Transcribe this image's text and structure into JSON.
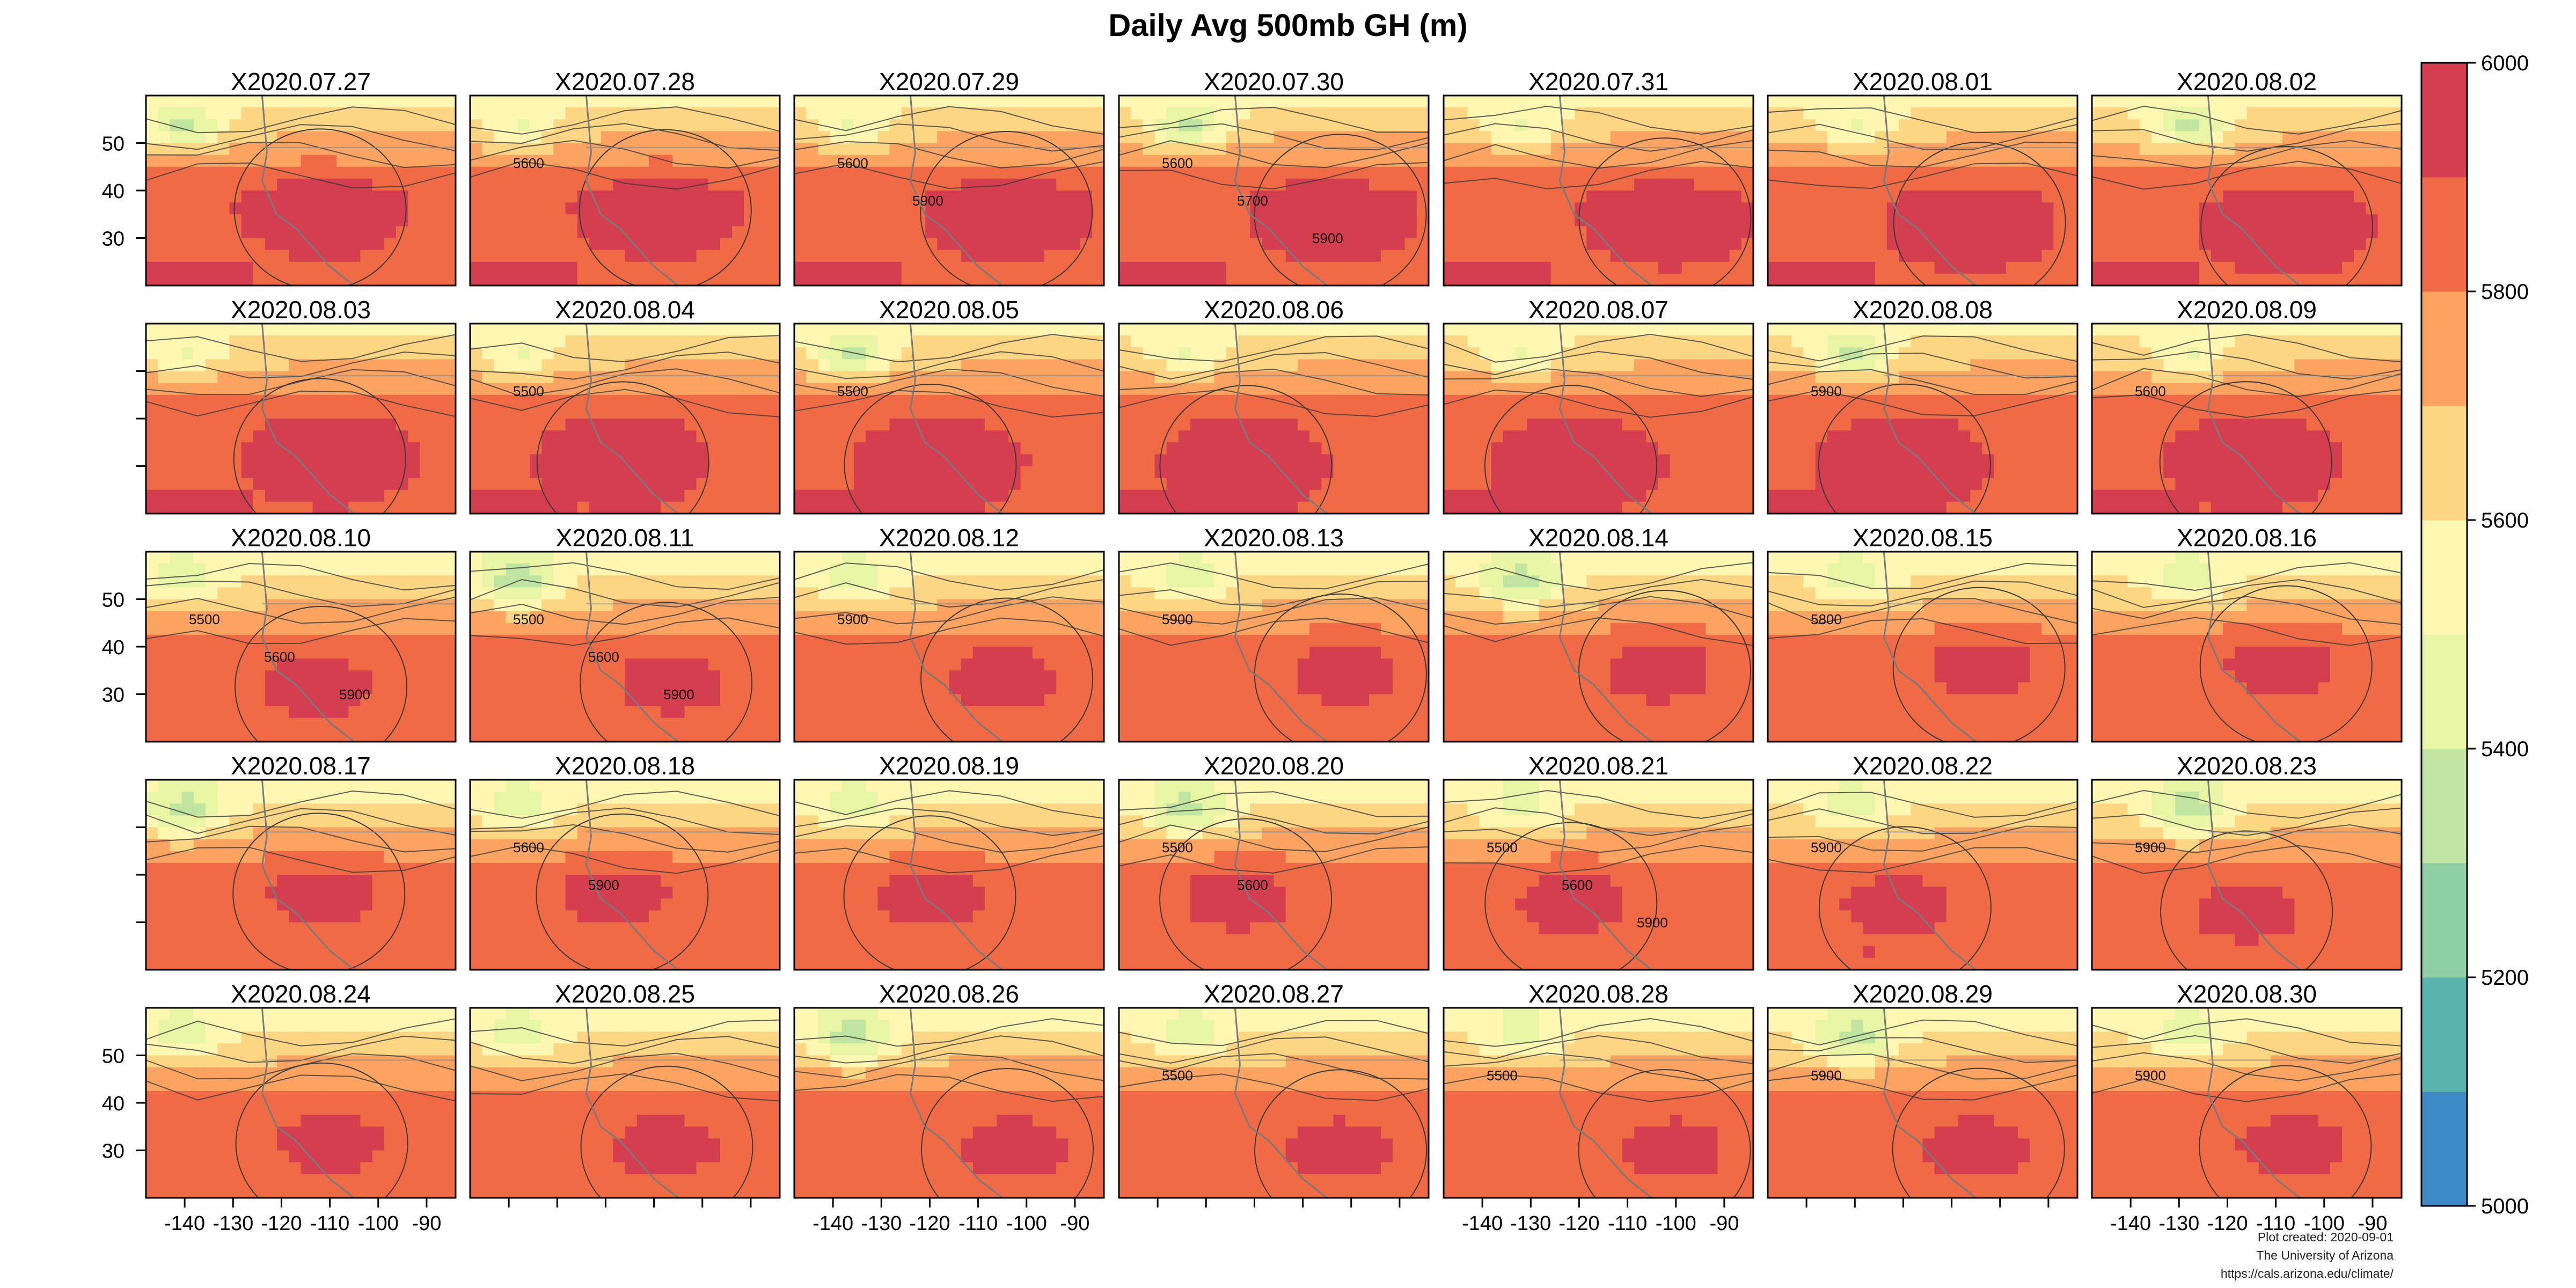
{
  "chart_data": {
    "type": "heatmap",
    "title": "Daily Avg 500mb GH (m)",
    "xlabel": "",
    "ylabel": "",
    "layout": {
      "rows": 5,
      "cols": 7
    },
    "panels": [
      "X2020.07.27",
      "X2020.07.28",
      "X2020.07.29",
      "X2020.07.30",
      "X2020.07.31",
      "X2020.08.01",
      "X2020.08.02",
      "X2020.08.03",
      "X2020.08.04",
      "X2020.08.05",
      "X2020.08.06",
      "X2020.08.07",
      "X2020.08.08",
      "X2020.08.09",
      "X2020.08.10",
      "X2020.08.11",
      "X2020.08.12",
      "X2020.08.13",
      "X2020.08.14",
      "X2020.08.15",
      "X2020.08.16",
      "X2020.08.17",
      "X2020.08.18",
      "X2020.08.19",
      "X2020.08.20",
      "X2020.08.21",
      "X2020.08.22",
      "X2020.08.23",
      "X2020.08.24",
      "X2020.08.25",
      "X2020.08.26",
      "X2020.08.27",
      "X2020.08.28",
      "X2020.08.29",
      "X2020.08.30"
    ],
    "xlim": [
      -148,
      -84
    ],
    "ylim": [
      20,
      60
    ],
    "x_ticks": [
      -140,
      -130,
      -120,
      -110,
      -100,
      -90
    ],
    "y_ticks": [
      30,
      40,
      50
    ],
    "x_tick_panels_cols": [
      0,
      2,
      4,
      6
    ],
    "y_tick_panels_rows": [
      0,
      2,
      4
    ],
    "colorbar": {
      "min": 5000,
      "max": 6000,
      "ticks": [
        5000,
        5200,
        5400,
        5600,
        5800,
        6000
      ],
      "colors": [
        "#3E89C6",
        "#5BB5AE",
        "#8ECFA4",
        "#BFE5A0",
        "#E8F5A4",
        "#FDF7B2",
        "#FDD684",
        "#FBA360",
        "#F06B45",
        "#D53E4F"
      ]
    },
    "contour_labels": [
      {
        "panel": "X2020.07.28",
        "text": "5600"
      },
      {
        "panel": "X2020.07.29",
        "text": "5600"
      },
      {
        "panel": "X2020.07.29",
        "text": "5900"
      },
      {
        "panel": "X2020.07.30",
        "text": "5600"
      },
      {
        "panel": "X2020.07.30",
        "text": "5700"
      },
      {
        "panel": "X2020.07.30",
        "text": "5900"
      },
      {
        "panel": "X2020.08.04",
        "text": "5500"
      },
      {
        "panel": "X2020.08.05",
        "text": "5500"
      },
      {
        "panel": "X2020.08.08",
        "text": "5900"
      },
      {
        "panel": "X2020.08.09",
        "text": "5600"
      },
      {
        "panel": "X2020.08.10",
        "text": "5500"
      },
      {
        "panel": "X2020.08.10",
        "text": "5600"
      },
      {
        "panel": "X2020.08.10",
        "text": "5900"
      },
      {
        "panel": "X2020.08.11",
        "text": "5500"
      },
      {
        "panel": "X2020.08.11",
        "text": "5600"
      },
      {
        "panel": "X2020.08.11",
        "text": "5900"
      },
      {
        "panel": "X2020.08.12",
        "text": "5900"
      },
      {
        "panel": "X2020.08.13",
        "text": "5900"
      },
      {
        "panel": "X2020.08.15",
        "text": "5800"
      },
      {
        "panel": "X2020.08.18",
        "text": "5600"
      },
      {
        "panel": "X2020.08.18",
        "text": "5900"
      },
      {
        "panel": "X2020.08.20",
        "text": "5500"
      },
      {
        "panel": "X2020.08.20",
        "text": "5600"
      },
      {
        "panel": "X2020.08.21",
        "text": "5500"
      },
      {
        "panel": "X2020.08.21",
        "text": "5600"
      },
      {
        "panel": "X2020.08.21",
        "text": "5900"
      },
      {
        "panel": "X2020.08.22",
        "text": "5900"
      },
      {
        "panel": "X2020.08.23",
        "text": "5900"
      },
      {
        "panel": "X2020.08.27",
        "text": "5500"
      },
      {
        "panel": "X2020.08.28",
        "text": "5500"
      },
      {
        "panel": "X2020.08.29",
        "text": "5900"
      },
      {
        "panel": "X2020.08.30",
        "text": "5900"
      }
    ]
  },
  "credits": {
    "line1": "Plot created: 2020-09-01",
    "line2": "The University of Arizona",
    "line3": "https://cals.arizona.edu/climate/"
  }
}
